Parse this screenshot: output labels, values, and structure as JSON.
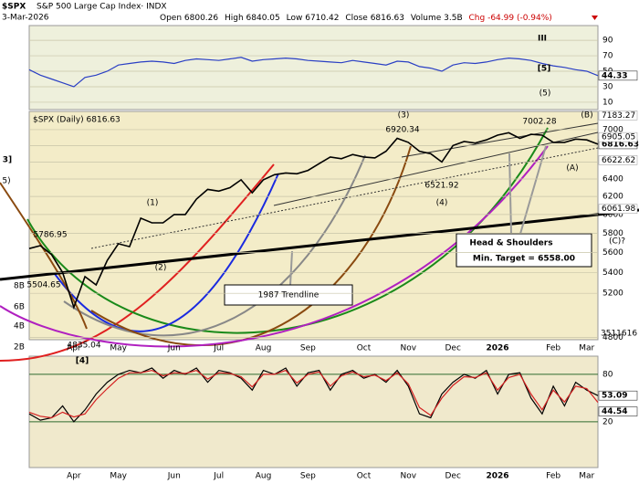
{
  "header": {
    "symbol": "$SPX",
    "name": "S&P 500 Large Cap Index· INDX",
    "date": "3-Mar-2026",
    "quote": [
      "Open 6800.26",
      "High 6840.05",
      "Low 6710.42",
      "Close 6816.63",
      "Volume 3.5B",
      "Chg -64.99 (-0.94%)"
    ]
  },
  "annotations": [
    "III",
    "[5]",
    "(5)",
    "(1)",
    "(2)",
    "(3)",
    "(4)",
    "(B)",
    "(A)",
    "(C)?",
    "6920.34",
    "6521.92",
    "7002.28",
    "5786.95",
    "5504.65",
    "4835.04",
    "[4]",
    "3]",
    "5)",
    "Head & Shoulders",
    "Min. Target = 6558.00",
    "1987 Trendline"
  ],
  "chart_data": [
    {
      "type": "line",
      "ylim": [
        0.5,
        109
      ],
      "yticks": [
        90,
        70,
        50,
        30,
        10
      ],
      "grid": true,
      "series": [
        {
          "color": "#2a3fc4",
          "values": [
            52,
            45,
            40,
            35,
            30,
            42,
            45,
            50,
            58,
            60,
            62,
            63,
            62,
            60,
            64,
            66,
            65,
            64,
            66,
            68,
            63,
            65,
            66,
            67,
            66,
            64,
            63,
            62,
            61,
            64,
            62,
            60,
            58,
            63,
            62,
            56,
            54,
            50,
            58,
            61,
            60,
            62,
            65,
            67,
            66,
            64,
            60,
            57,
            55,
            52,
            50,
            44.33
          ]
        }
      ]
    },
    {
      "type": "line",
      "log_scale": true,
      "legend_label": "$SPX (Daily) 6816.63",
      "ylim": [
        4780,
        7235
      ],
      "yticks": [
        7000,
        6800,
        6600,
        6400,
        6200,
        6000,
        5800,
        5600,
        5400,
        5200,
        4800
      ],
      "grid": true,
      "level_labels": [
        7183.27,
        6905.05,
        6622.62,
        6061.98
      ],
      "volume_labels": [
        "3511616",
        "8B",
        "6B",
        "4B",
        "2B"
      ],
      "categories": [
        null,
        null,
        null,
        null,
        "Apr",
        null,
        null,
        null,
        "May",
        null,
        null,
        null,
        null,
        "Jun",
        null,
        null,
        null,
        "Jul",
        null,
        null,
        null,
        "Aug",
        null,
        null,
        null,
        "Sep",
        null,
        null,
        null,
        null,
        "Oct",
        null,
        null,
        null,
        "Nov",
        null,
        null,
        null,
        "Dec",
        null,
        null,
        null,
        "2026",
        null,
        null,
        null,
        null,
        "Feb",
        null,
        null,
        "Mar",
        null
      ],
      "series": [
        {
          "color": "#000000",
          "values": [
            5640,
            5670,
            5580,
            5400,
            5070,
            5360,
            5280,
            5520,
            5690,
            5660,
            5960,
            5910,
            5910,
            6000,
            6000,
            6170,
            6280,
            6260,
            6300,
            6390,
            6240,
            6390,
            6450,
            6470,
            6460,
            6500,
            6580,
            6660,
            6640,
            6690,
            6660,
            6650,
            6730,
            6890,
            6840,
            6730,
            6700,
            6600,
            6800,
            6850,
            6830,
            6870,
            6930,
            6960,
            6890,
            6940,
            6930,
            6840,
            6840,
            6880,
            6870,
            6816.63
          ]
        }
      ]
    },
    {
      "type": "line",
      "ylim": [
        -38,
        103
      ],
      "yticks": [
        80,
        20
      ],
      "grid": true,
      "categories": [
        null,
        null,
        null,
        null,
        "Apr",
        null,
        null,
        null,
        "May",
        null,
        null,
        null,
        null,
        "Jun",
        null,
        null,
        null,
        "Jul",
        null,
        null,
        null,
        "Aug",
        null,
        null,
        null,
        "Sep",
        null,
        null,
        null,
        null,
        "Oct",
        null,
        null,
        null,
        "Nov",
        null,
        null,
        null,
        "Dec",
        null,
        null,
        null,
        "2026",
        null,
        null,
        null,
        null,
        "Feb",
        null,
        null,
        "Mar",
        null
      ],
      "series": [
        {
          "color": "#000000",
          "values": [
            30,
            22,
            25,
            40,
            20,
            35,
            55,
            70,
            80,
            85,
            82,
            88,
            75,
            85,
            80,
            88,
            70,
            85,
            82,
            75,
            60,
            85,
            80,
            88,
            65,
            82,
            85,
            60,
            80,
            85,
            75,
            80,
            70,
            85,
            65,
            30,
            25,
            55,
            70,
            80,
            75,
            85,
            55,
            80,
            82,
            50,
            30,
            65,
            40,
            70,
            60,
            53.09
          ]
        },
        {
          "color": "#d42020",
          "values": [
            32,
            27,
            25,
            32,
            26,
            30,
            48,
            62,
            75,
            82,
            82,
            85,
            78,
            82,
            81,
            85,
            74,
            82,
            81,
            77,
            64,
            80,
            80,
            85,
            69,
            80,
            83,
            65,
            78,
            83,
            77,
            79,
            72,
            82,
            68,
            38,
            28,
            50,
            66,
            77,
            76,
            82,
            60,
            76,
            80,
            55,
            35,
            60,
            45,
            65,
            62,
            44.54
          ]
        }
      ]
    }
  ]
}
